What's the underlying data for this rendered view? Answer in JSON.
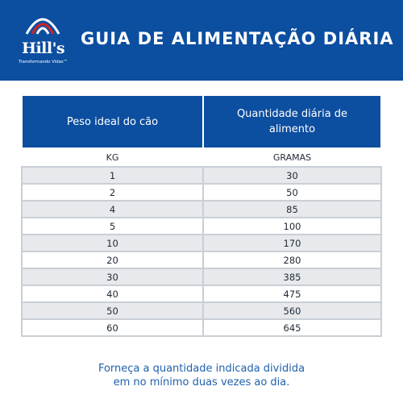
{
  "header": {
    "brand_name": "Hill's",
    "brand_tagline": "Transformando Vidas™",
    "title": "GUIA DE ALIMENTAÇÃO DIÁRIA",
    "colors": {
      "header_bg": "#0c4ea0",
      "text": "#ffffff"
    }
  },
  "table": {
    "headers": [
      "Peso ideal do cão",
      "Quantidade diária de alimento"
    ],
    "units": [
      "KG",
      "GRAMAS"
    ],
    "rows": [
      [
        "1",
        "30"
      ],
      [
        "2",
        "50"
      ],
      [
        "4",
        "85"
      ],
      [
        "5",
        "100"
      ],
      [
        "10",
        "170"
      ],
      [
        "20",
        "280"
      ],
      [
        "30",
        "385"
      ],
      [
        "40",
        "475"
      ],
      [
        "50",
        "560"
      ],
      [
        "60",
        "645"
      ]
    ],
    "colors": {
      "header_bg": "#0c4ea0",
      "stripe": "#e7e9ec"
    }
  },
  "footnote": {
    "line1": "Forneça a quantidade indicada dividida",
    "line2": "em no mínimo duas vezes ao dia."
  }
}
